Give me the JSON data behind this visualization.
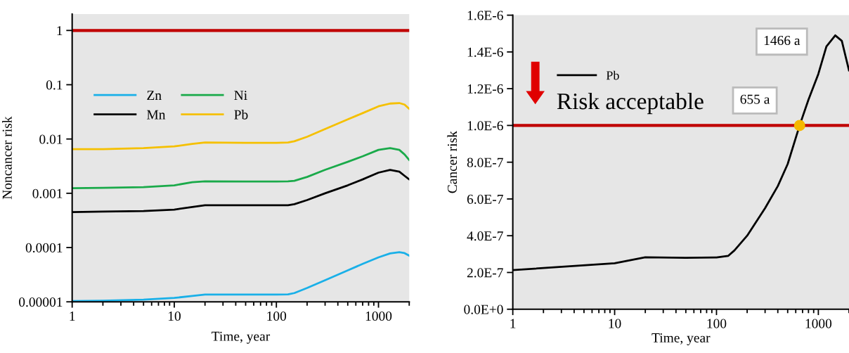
{
  "chart_data": [
    {
      "type": "line",
      "xlabel": "Time, year",
      "ylabel": "Noncancer risk",
      "log": "xy",
      "x": [
        1,
        2,
        5,
        10,
        15,
        20,
        50,
        100,
        130,
        150,
        200,
        300,
        500,
        700,
        1000,
        1300,
        1600,
        1800,
        2000
      ],
      "series": [
        {
          "name": "Zn",
          "color": "#1ab0e8",
          "values": [
            1.03e-05,
            1.05e-05,
            1.1e-05,
            1.18e-05,
            1.28e-05,
            1.36e-05,
            1.36e-05,
            1.36e-05,
            1.37e-05,
            1.45e-05,
            1.8e-05,
            2.5e-05,
            3.8e-05,
            5e-05,
            6.6e-05,
            7.8e-05,
            8.2e-05,
            7.9e-05,
            7.1e-05
          ]
        },
        {
          "name": "Ni",
          "color": "#1aaa4a",
          "values": [
            0.00124,
            0.00126,
            0.0013,
            0.0014,
            0.0016,
            0.00166,
            0.00165,
            0.00165,
            0.00166,
            0.0017,
            0.002,
            0.0027,
            0.0038,
            0.0048,
            0.0063,
            0.0068,
            0.0063,
            0.0052,
            0.0041
          ]
        },
        {
          "name": "Mn",
          "color": "#000000",
          "values": [
            0.00045,
            0.00046,
            0.00047,
            0.0005,
            0.00056,
            0.0006,
            0.0006,
            0.0006,
            0.0006,
            0.00063,
            0.00075,
            0.001,
            0.0014,
            0.0018,
            0.0024,
            0.0027,
            0.0025,
            0.0021,
            0.0018
          ]
        },
        {
          "name": "Pb",
          "color": "#f5c000",
          "values": [
            0.0065,
            0.0065,
            0.0068,
            0.0073,
            0.0081,
            0.0086,
            0.0085,
            0.0085,
            0.0086,
            0.0091,
            0.011,
            0.0153,
            0.023,
            0.03,
            0.04,
            0.045,
            0.046,
            0.043,
            0.036
          ]
        }
      ],
      "xlim": [
        1,
        2000
      ],
      "xticks": [
        1,
        10,
        100,
        1000
      ],
      "ylim": [
        1e-05,
        2
      ],
      "yticks": [
        {
          "value": 1e-05,
          "label": "0.00001"
        },
        {
          "value": 0.0001,
          "label": "0.0001"
        },
        0.001,
        0.01,
        0.1,
        1
      ],
      "ref_lines": [
        {
          "axis": "y",
          "value": 1,
          "color": "#c00000"
        }
      ],
      "legend": "center left",
      "grid": false
    },
    {
      "type": "line",
      "xlabel": "Time, year",
      "ylabel": "Cancer risk",
      "log": "x",
      "series": [
        {
          "name": "Pb",
          "color": "#000000",
          "x": [
            1,
            10,
            20,
            50,
            100,
            130,
            150,
            200,
            300,
            400,
            500,
            655,
            800,
            1000,
            1200,
            1466,
            1700,
            2000
          ],
          "values": [
            2.13e-07,
            2.5e-07,
            2.83e-07,
            2.8e-07,
            2.82e-07,
            2.9e-07,
            3.2e-07,
            4e-07,
            5.5e-07,
            6.7e-07,
            7.9e-07,
            1e-06,
            1.14e-06,
            1.28e-06,
            1.43e-06,
            1.49e-06,
            1.46e-06,
            1.3e-06
          ]
        },
        {
          "type": "scatter",
          "color": "#f5b800",
          "x": [
            655
          ],
          "values": [
            1e-06
          ]
        }
      ],
      "xlim": [
        1,
        2000
      ],
      "xticks": [
        1,
        10,
        100,
        1000
      ],
      "ylim": [
        0,
        1.6e-06
      ],
      "yticks": [
        {
          "value": 0,
          "label": "0.0E+0"
        },
        {
          "value": 2e-07,
          "label": "2.0E-7"
        },
        {
          "value": 4e-07,
          "label": "4.0E-7"
        },
        {
          "value": 6e-07,
          "label": "6.0E-7"
        },
        {
          "value": 8e-07,
          "label": "8.0E-7"
        },
        {
          "value": 1e-06,
          "label": "1.0E-6"
        },
        {
          "value": 1.2e-06,
          "label": "1.2E-6"
        },
        {
          "value": 1.4e-06,
          "label": "1.4E-6"
        },
        {
          "value": 1.6e-06,
          "label": "1.6E-6"
        }
      ],
      "ref_lines": [
        {
          "axis": "y",
          "value": 1e-06,
          "color": "#c00000"
        }
      ],
      "annotations": [
        "1466 a",
        "655 a",
        "Risk acceptable"
      ],
      "legend": "top left",
      "grid": false
    }
  ]
}
